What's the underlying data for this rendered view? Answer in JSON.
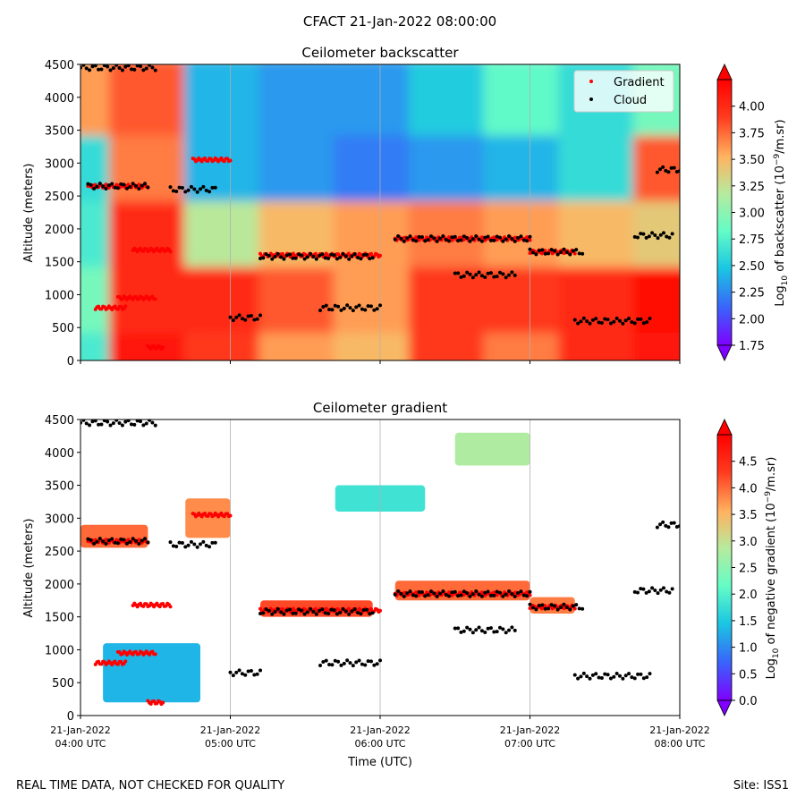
{
  "suptitle": "CFACT 21-Jan-2022 08:00:00",
  "footer": {
    "left": "REAL TIME DATA, NOT CHECKED FOR QUALITY",
    "right": "Site: ISS1"
  },
  "colors": {
    "gradient_marker": "#ff0000",
    "cloud_marker": "#000000",
    "colormap": [
      "#7f00ff",
      "#3a62fb",
      "#1ac7e2",
      "#64fcc6",
      "#b5eb9e",
      "#ffb360",
      "#ff3a1e",
      "#ff0000"
    ]
  },
  "chart_data": [
    {
      "type": "heatmap",
      "title": "Ceilometer backscatter",
      "ylabel": "Altitude (meters)",
      "ylim": [
        0,
        4500
      ],
      "yticks": [
        "0",
        "500",
        "1000",
        "1500",
        "2000",
        "2500",
        "3000",
        "3500",
        "4000",
        "4500"
      ],
      "xlim_hours_utc": [
        4,
        8
      ],
      "grid": "vertical",
      "legend": {
        "placement": "top-right",
        "entries": [
          "Gradient",
          "Cloud"
        ]
      },
      "colorbar": {
        "label_prefix": "Log",
        "label_sub": "10",
        "label_mid": " of backscatter (10",
        "label_sup": "−9",
        "label_end": "/m.sr)",
        "range": [
          1.75,
          4.25
        ],
        "ticks": [
          "1.75",
          "2.00",
          "2.25",
          "2.50",
          "2.75",
          "3.00",
          "3.25",
          "3.50",
          "3.75",
          "4.00"
        ],
        "extend": "both"
      },
      "field": {
        "time_hours_utc": [
          4.0,
          4.5,
          5.0,
          5.5,
          6.0,
          6.5,
          7.0,
          7.5,
          8.0
        ],
        "altitude_m": [
          0,
          1000,
          2000,
          3000,
          4000
        ],
        "log10_backscatter": [
          [
            2.7,
            4.1,
            3.9,
            3.6,
            3.5,
            3.9,
            3.7,
            4.0,
            4.1
          ],
          [
            2.9,
            4.0,
            4.0,
            3.8,
            3.6,
            3.9,
            3.9,
            4.0,
            4.2
          ],
          [
            2.7,
            4.0,
            3.2,
            3.5,
            3.6,
            3.7,
            3.6,
            3.5,
            3.4
          ],
          [
            2.6,
            3.7,
            2.4,
            2.3,
            2.2,
            2.3,
            2.4,
            2.6,
            3.8
          ],
          [
            3.6,
            3.8,
            2.4,
            2.3,
            2.3,
            2.5,
            2.8,
            2.6,
            2.9
          ]
        ]
      },
      "gradient_layers": [
        {
          "t_start": 4.05,
          "t_end": 4.45,
          "altitude_m": 2650
        },
        {
          "t_start": 4.75,
          "t_end": 5.0,
          "altitude_m": 3050
        },
        {
          "t_start": 5.2,
          "t_end": 6.0,
          "altitude_m": 1600
        },
        {
          "t_start": 6.1,
          "t_end": 7.0,
          "altitude_m": 1850
        },
        {
          "t_start": 7.0,
          "t_end": 7.3,
          "altitude_m": 1650
        },
        {
          "t_start": 4.1,
          "t_end": 4.3,
          "altitude_m": 800
        },
        {
          "t_start": 4.35,
          "t_end": 4.6,
          "altitude_m": 1680
        },
        {
          "t_start": 4.25,
          "t_end": 4.5,
          "altitude_m": 950
        },
        {
          "t_start": 4.45,
          "t_end": 4.55,
          "altitude_m": 200
        }
      ],
      "cloud_layers": [
        {
          "t_start": 4.0,
          "t_end": 4.5,
          "altitude_m": 4450
        },
        {
          "t_start": 4.05,
          "t_end": 4.45,
          "altitude_m": 2650
        },
        {
          "t_start": 4.6,
          "t_end": 4.9,
          "altitude_m": 2600
        },
        {
          "t_start": 5.0,
          "t_end": 5.2,
          "altitude_m": 650
        },
        {
          "t_start": 5.2,
          "t_end": 5.95,
          "altitude_m": 1580
        },
        {
          "t_start": 5.6,
          "t_end": 6.0,
          "altitude_m": 800
        },
        {
          "t_start": 6.1,
          "t_end": 7.0,
          "altitude_m": 1850
        },
        {
          "t_start": 6.5,
          "t_end": 6.9,
          "altitude_m": 1300
        },
        {
          "t_start": 7.0,
          "t_end": 7.35,
          "altitude_m": 1650
        },
        {
          "t_start": 7.3,
          "t_end": 7.8,
          "altitude_m": 600
        },
        {
          "t_start": 7.7,
          "t_end": 7.95,
          "altitude_m": 1900
        },
        {
          "t_start": 7.85,
          "t_end": 8.0,
          "altitude_m": 2900
        }
      ]
    },
    {
      "type": "heatmap",
      "title": "Ceilometer gradient",
      "ylabel": "Altitude (meters)",
      "xlabel": "Time (UTC)",
      "ylim": [
        0,
        4500
      ],
      "yticks": [
        "0",
        "500",
        "1000",
        "1500",
        "2000",
        "2500",
        "3000",
        "3500",
        "4000",
        "4500"
      ],
      "xlim_hours_utc": [
        4,
        8
      ],
      "xticks": [
        {
          "line1": "21-Jan-2022",
          "line2": "04:00 UTC"
        },
        {
          "line1": "21-Jan-2022",
          "line2": "05:00 UTC"
        },
        {
          "line1": "21-Jan-2022",
          "line2": "06:00 UTC"
        },
        {
          "line1": "21-Jan-2022",
          "line2": "07:00 UTC"
        },
        {
          "line1": "21-Jan-2022",
          "line2": "08:00 UTC"
        }
      ],
      "grid": "vertical",
      "colorbar": {
        "label_prefix": "Log",
        "label_sub": "10",
        "label_mid": " of negative gradient (10",
        "label_sup": "−9",
        "label_end": "/m.sr)",
        "range": [
          0.0,
          5.0
        ],
        "ticks": [
          "0.0",
          "0.5",
          "1.0",
          "1.5",
          "2.0",
          "2.5",
          "3.0",
          "3.5",
          "4.0",
          "4.5"
        ],
        "extend": "both"
      },
      "field_bands": [
        {
          "t_start": 4.0,
          "t_end": 4.45,
          "alt_low": 2550,
          "alt_high": 2900,
          "log10_gradient": 4.0
        },
        {
          "t_start": 4.7,
          "t_end": 5.0,
          "alt_low": 2700,
          "alt_high": 3300,
          "log10_gradient": 3.8
        },
        {
          "t_start": 5.2,
          "t_end": 5.95,
          "alt_low": 1500,
          "alt_high": 1750,
          "log10_gradient": 4.2
        },
        {
          "t_start": 6.1,
          "t_end": 7.0,
          "alt_low": 1750,
          "alt_high": 2050,
          "log10_gradient": 4.0
        },
        {
          "t_start": 7.0,
          "t_end": 7.3,
          "alt_low": 1550,
          "alt_high": 1800,
          "log10_gradient": 3.9
        },
        {
          "t_start": 6.5,
          "t_end": 7.0,
          "alt_low": 3800,
          "alt_high": 4300,
          "log10_gradient": 2.8
        },
        {
          "t_start": 4.15,
          "t_end": 4.8,
          "alt_low": 200,
          "alt_high": 1100,
          "log10_gradient": 1.3
        },
        {
          "t_start": 5.7,
          "t_end": 6.3,
          "alt_low": 3100,
          "alt_high": 3500,
          "log10_gradient": 1.8
        }
      ]
    }
  ]
}
